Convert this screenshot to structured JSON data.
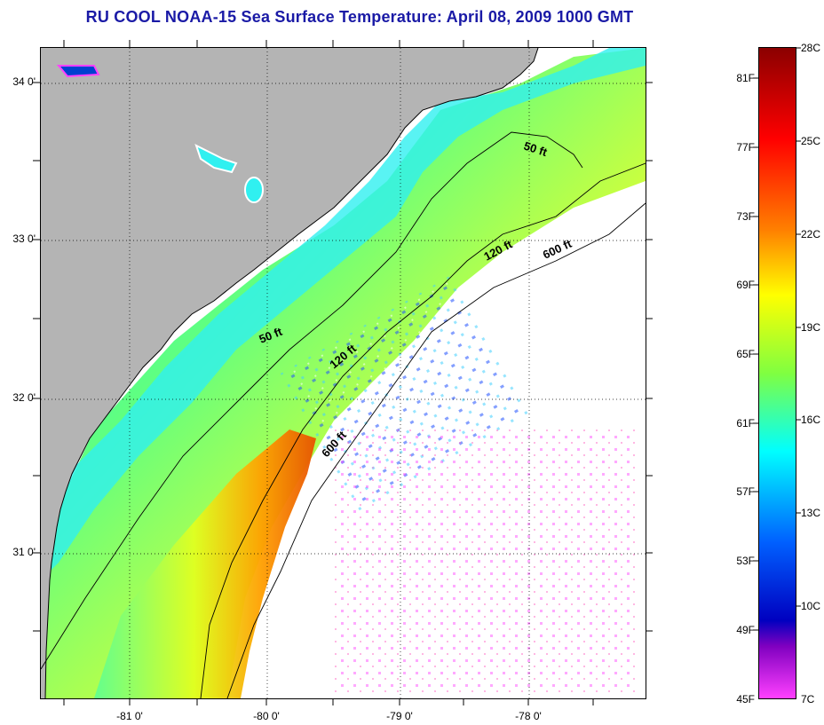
{
  "title": "RU COOL  NOAA-15  Sea Surface Temperature:  April 08, 2009 1000 GMT",
  "lat_labels": [
    "34 0'",
    "33 0'",
    "32 0'",
    "31 0'"
  ],
  "lon_labels": [
    "-81 0'",
    "-80 0'",
    "-79 0'",
    "-78 0'"
  ],
  "contour_labels": {
    "c50_north": "50 ft",
    "c50_south": "50 ft",
    "c120_north": "120 ft",
    "c120_south": "120 ft",
    "c600_north": "600 ft",
    "c600_south": "600 ft"
  },
  "colorbar": {
    "fahrenheit": [
      "81F",
      "77F",
      "73F",
      "69F",
      "65F",
      "61F",
      "57F",
      "53F",
      "49F",
      "45F"
    ],
    "celsius": [
      "28C",
      "25C",
      "22C",
      "19C",
      "16C",
      "13C",
      "10C",
      "7C"
    ],
    "colors": {
      "top": "#8b0000",
      "red": "#ff0000",
      "orange": "#ff8000",
      "yellow": "#ffff00",
      "green": "#80ff40",
      "cyan": "#00ffff",
      "blue": "#0060ff",
      "darkblue": "#0000c0",
      "purple": "#8000c0",
      "magenta": "#ff40ff"
    }
  },
  "map_colors": {
    "land": "#b4b4b4",
    "no_data": "#ffffff",
    "coastline": "#000000",
    "grid": "#000000"
  }
}
